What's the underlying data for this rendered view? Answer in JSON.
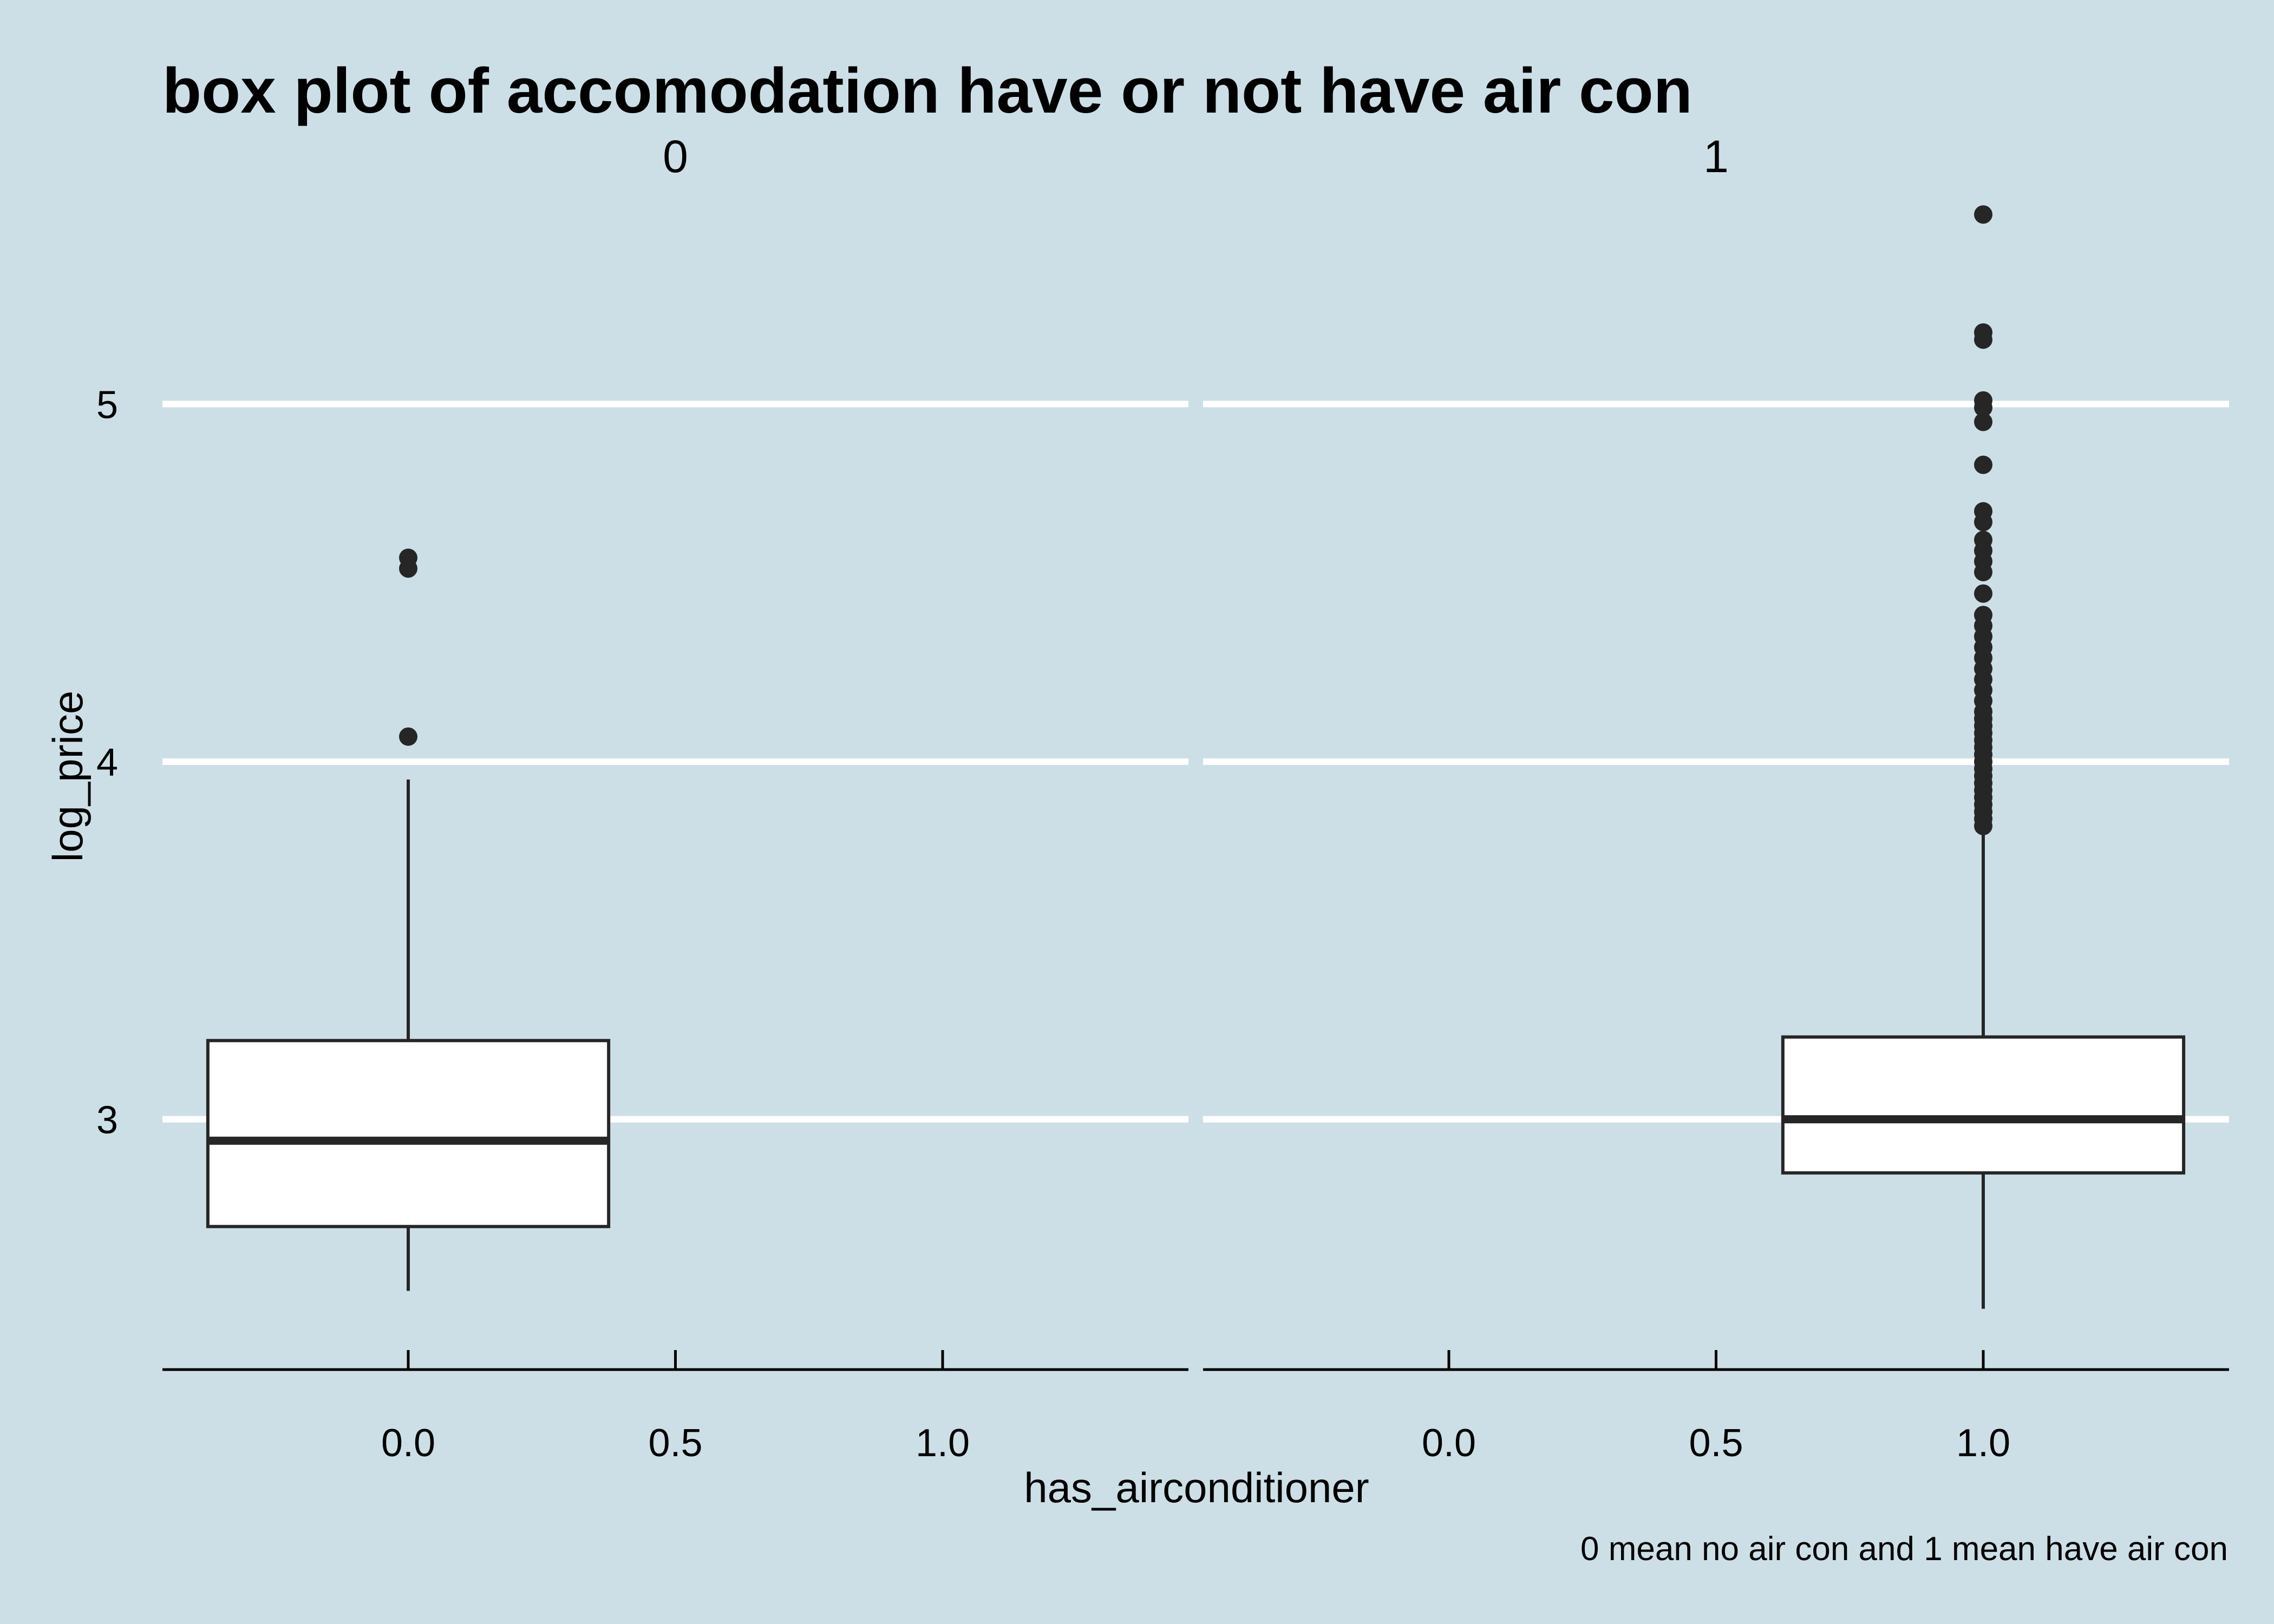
{
  "chart_data": {
    "type": "box",
    "title": "box plot of accomodation have or not have air con",
    "xlabel": "has_airconditioner",
    "ylabel": "log_price",
    "caption": "0 mean no air con and 1 mean have air con",
    "ylim": [
      2.3,
      5.6
    ],
    "y_ticks": [
      3,
      4,
      5
    ],
    "y_tick_labels": [
      "3",
      "4",
      "5"
    ],
    "x_ticks": [
      0.0,
      0.5,
      1.0
    ],
    "x_tick_labels": [
      "0.0",
      "0.5",
      "1.0"
    ],
    "xlim": [
      -0.46,
      1.46
    ],
    "grid": "horizontal major lines only",
    "facets": [
      {
        "label": "0",
        "box": {
          "x": 0,
          "width": 0.75,
          "lower_whisker": 2.52,
          "q1": 2.7,
          "median": 2.94,
          "q3": 3.22,
          "upper_whisker": 3.95
        },
        "outliers": [
          4.07,
          4.54,
          4.57
        ]
      },
      {
        "label": "1",
        "box": {
          "x": 1,
          "width": 0.75,
          "lower_whisker": 2.47,
          "q1": 2.85,
          "median": 3.0,
          "q3": 3.23,
          "upper_whisker": 3.82
        },
        "outliers": [
          3.82,
          3.84,
          3.86,
          3.88,
          3.9,
          3.92,
          3.94,
          3.96,
          3.98,
          4.0,
          4.02,
          4.04,
          4.06,
          4.08,
          4.1,
          4.12,
          4.14,
          4.17,
          4.2,
          4.23,
          4.26,
          4.29,
          4.32,
          4.35,
          4.38,
          4.41,
          4.47,
          4.53,
          4.56,
          4.59,
          4.62,
          4.67,
          4.7,
          4.83,
          4.95,
          4.99,
          5.01,
          5.18,
          5.2,
          5.53
        ]
      }
    ]
  }
}
